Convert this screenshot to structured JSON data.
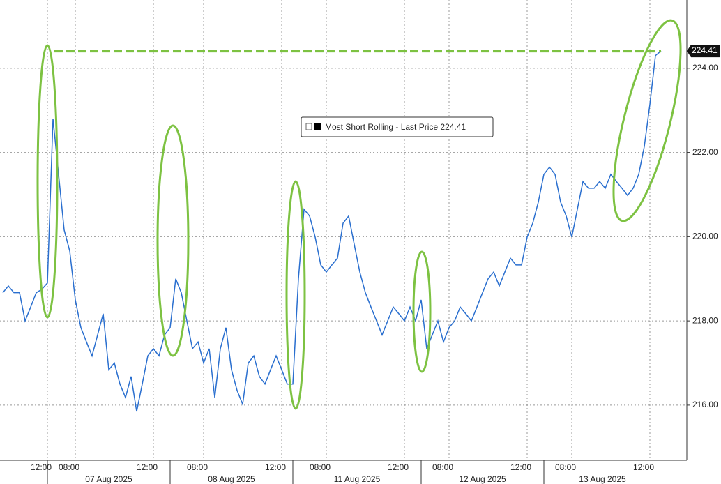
{
  "chart_data": {
    "type": "line",
    "categories": [
      null,
      null,
      null,
      null,
      null,
      null,
      null,
      null,
      "12:00",
      null,
      null,
      null,
      null,
      "08:00",
      null,
      null,
      null,
      null,
      null,
      null,
      null,
      null,
      null,
      null,
      null,
      null,
      null,
      "12:00",
      null,
      null,
      null,
      null,
      null,
      null,
      null,
      null,
      "08:00",
      null,
      null,
      null,
      null,
      null,
      null,
      null,
      null,
      null,
      null,
      null,
      null,
      null,
      "12:00",
      null,
      null,
      null,
      null,
      null,
      null,
      null,
      "08:00",
      null,
      null,
      null,
      null,
      null,
      null,
      null,
      null,
      null,
      null,
      null,
      null,
      null,
      "12:00",
      null,
      null,
      null,
      null,
      null,
      null,
      null,
      "08:00",
      null,
      null,
      null,
      null,
      null,
      null,
      null,
      null,
      null,
      null,
      null,
      null,
      null,
      "12:00",
      null,
      null,
      null,
      null,
      null,
      null,
      null,
      "08:00",
      null,
      null,
      null,
      null,
      null,
      null,
      null,
      null,
      null,
      null,
      null,
      null,
      null,
      "12:00",
      null,
      null
    ],
    "days": [
      {
        "label": "07 Aug 2025",
        "from": 8,
        "to": 30
      },
      {
        "label": "08 Aug 2025",
        "from": 30,
        "to": 52
      },
      {
        "label": "11 Aug 2025",
        "from": 52,
        "to": 75
      },
      {
        "label": "12 Aug 2025",
        "from": 75,
        "to": 97
      },
      {
        "label": "13 Aug 2025",
        "from": 97,
        "to": 118
      }
    ],
    "series": [
      {
        "name": "Most Short Rolling - Last Price",
        "color": "#2a6fcf",
        "values": [
          218.67,
          218.83,
          218.67,
          218.67,
          218.0,
          218.33,
          218.67,
          218.75,
          218.9,
          222.8,
          221.48,
          220.16,
          219.66,
          218.5,
          217.84,
          217.5,
          217.17,
          217.67,
          218.17,
          216.84,
          217.0,
          216.5,
          216.18,
          216.68,
          215.85,
          216.5,
          217.17,
          217.34,
          217.17,
          217.67,
          217.84,
          219.0,
          218.67,
          218.0,
          217.34,
          217.5,
          217.0,
          217.34,
          216.18,
          217.34,
          217.84,
          216.84,
          216.35,
          216.02,
          217.0,
          217.17,
          216.68,
          216.5,
          216.84,
          217.17,
          216.84,
          216.5,
          216.5,
          219.0,
          220.65,
          220.49,
          219.99,
          219.33,
          219.16,
          219.33,
          219.49,
          220.32,
          220.49,
          219.82,
          219.16,
          218.67,
          218.33,
          218.0,
          217.67,
          218.0,
          218.33,
          218.17,
          218.0,
          218.33,
          218.0,
          218.5,
          217.34,
          217.67,
          218.0,
          217.5,
          217.84,
          218.0,
          218.33,
          218.17,
          218.0,
          218.33,
          218.67,
          219.0,
          219.16,
          218.83,
          219.16,
          219.49,
          219.33,
          219.33,
          219.99,
          220.32,
          220.82,
          221.48,
          221.65,
          221.48,
          220.82,
          220.49,
          219.99,
          220.65,
          221.31,
          221.15,
          221.15,
          221.31,
          221.15,
          221.48,
          221.31,
          221.15,
          220.98,
          221.15,
          221.48,
          222.14,
          223.14,
          224.3,
          224.41
        ]
      }
    ],
    "ylim": [
      214.69,
      225.62
    ],
    "yticks": [
      {
        "value": 216,
        "label": "216.00"
      },
      {
        "value": 218,
        "label": "218.00"
      },
      {
        "value": 220,
        "label": "220.00"
      },
      {
        "value": 222,
        "label": "222.00"
      },
      {
        "value": 224,
        "label": "224.00"
      }
    ],
    "grid": true,
    "annotation_color": "#7dc242"
  }
}
